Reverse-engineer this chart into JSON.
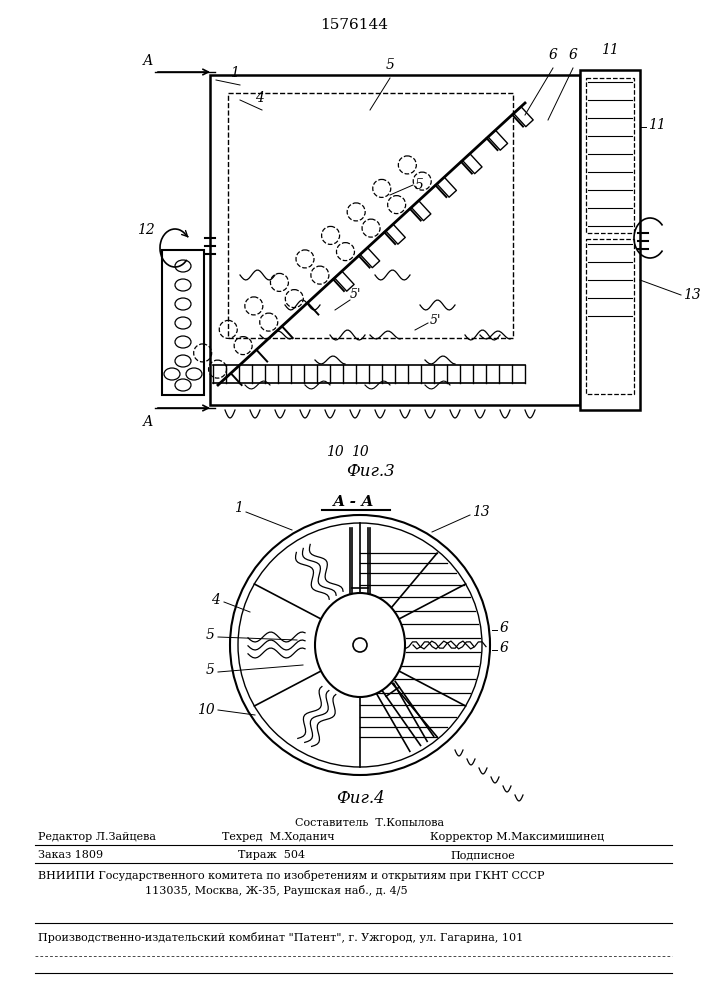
{
  "patent_number": "1576144",
  "fig3_label": "Фиг.3",
  "fig4_label": "Фиг.4",
  "section_label": "А-А",
  "background_color": "#ffffff",
  "line_color": "#000000"
}
